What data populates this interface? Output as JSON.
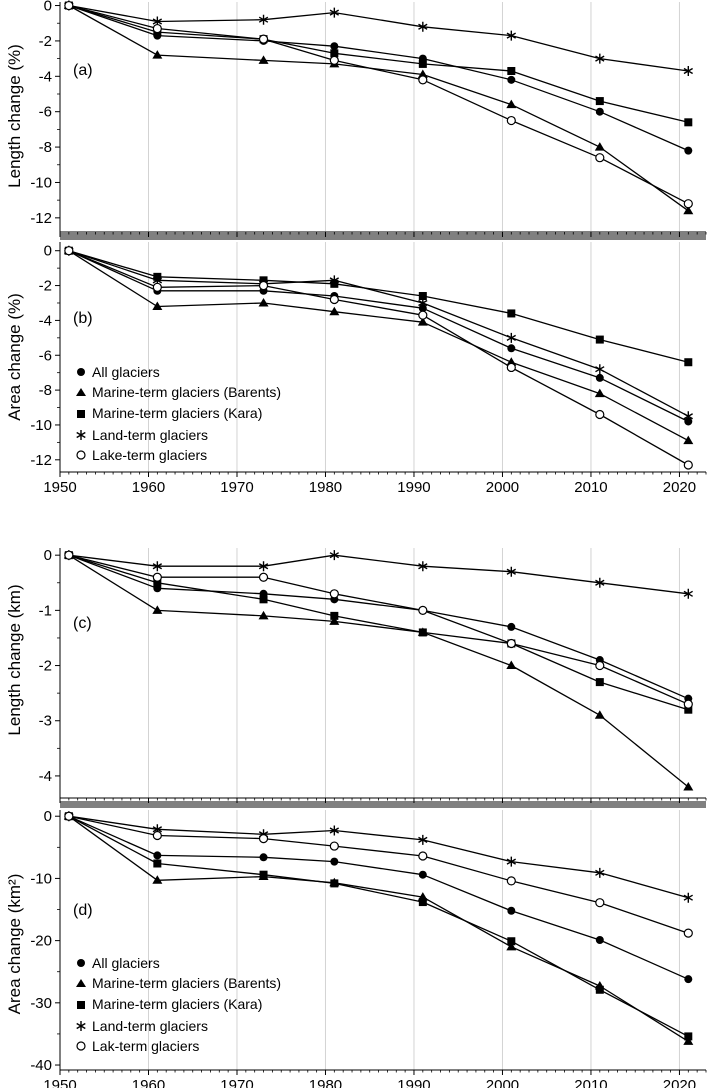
{
  "figure": {
    "x_tick_labels": [
      "1950",
      "1960",
      "1970",
      "1980",
      "1990",
      "2000",
      "2010",
      "2020"
    ]
  },
  "chart_data": [
    {
      "type": "line",
      "panel_label": "(a)",
      "ylabel": "Length change (%)",
      "xlim": [
        1950,
        2023
      ],
      "ylim": [
        -12.8,
        0.2
      ],
      "yticks": [
        0,
        -2,
        -4,
        -6,
        -8,
        -10,
        -12
      ],
      "x": [
        1951,
        1961,
        1973,
        1981,
        1991,
        2001,
        2011,
        2021
      ],
      "legend": false,
      "series": [
        {
          "name": "All glaciers",
          "marker": "circle-filled",
          "values": [
            0,
            -1.7,
            -2.0,
            -2.3,
            -3.0,
            -4.2,
            -6.0,
            -8.2
          ]
        },
        {
          "name": "Marine-term glaciers (Barents)",
          "marker": "triangle",
          "values": [
            0,
            -2.8,
            -3.1,
            -3.3,
            -3.9,
            -5.6,
            -8.0,
            -11.6
          ]
        },
        {
          "name": "Marine-term glaciers (Kara)",
          "marker": "square",
          "values": [
            0,
            -1.5,
            -1.9,
            -2.7,
            -3.3,
            -3.7,
            -5.4,
            -6.6
          ]
        },
        {
          "name": "Land-term glaciers",
          "marker": "asterisk",
          "values": [
            0,
            -0.9,
            -0.8,
            -0.4,
            -1.2,
            -1.7,
            -3.0,
            -3.7
          ]
        },
        {
          "name": "Lake-term glaciers",
          "marker": "circle-open",
          "values": [
            0,
            -1.3,
            -1.9,
            -3.1,
            -4.2,
            -6.5,
            -8.6,
            -11.2
          ]
        }
      ]
    },
    {
      "type": "line",
      "panel_label": "(b)",
      "ylabel": "Area change (%)",
      "xlim": [
        1950,
        2023
      ],
      "ylim": [
        -12.7,
        0.5
      ],
      "yticks": [
        0,
        -2,
        -4,
        -6,
        -8,
        -10,
        -12
      ],
      "x": [
        1951,
        1961,
        1973,
        1981,
        1991,
        2001,
        2011,
        2021
      ],
      "legend": true,
      "series": [
        {
          "name": "All glaciers",
          "marker": "circle-filled",
          "values": [
            0,
            -2.3,
            -2.3,
            -2.6,
            -3.3,
            -5.6,
            -7.3,
            -9.8
          ]
        },
        {
          "name": "Marine-term glaciers (Barents)",
          "marker": "triangle",
          "values": [
            0,
            -3.2,
            -3.0,
            -3.5,
            -4.1,
            -6.4,
            -8.2,
            -10.9
          ]
        },
        {
          "name": "Marine-term glaciers (Kara)",
          "marker": "square",
          "values": [
            0,
            -1.5,
            -1.7,
            -1.9,
            -2.6,
            -3.6,
            -5.1,
            -6.4
          ]
        },
        {
          "name": "Land-term glaciers",
          "marker": "asterisk",
          "values": [
            0,
            -1.7,
            -1.9,
            -1.7,
            -3.0,
            -5.0,
            -6.8,
            -9.5
          ]
        },
        {
          "name": "Lake-term glaciers",
          "marker": "circle-open",
          "values": [
            0,
            -2.1,
            -2.0,
            -2.8,
            -3.7,
            -6.7,
            -9.4,
            -12.3
          ]
        }
      ]
    },
    {
      "type": "line",
      "panel_label": "(c)",
      "ylabel": "Length change (km)",
      "xlim": [
        1950,
        2023
      ],
      "ylim": [
        -4.4,
        0.13
      ],
      "yticks": [
        0,
        -1,
        -2,
        -3,
        -4
      ],
      "x": [
        1951,
        1961,
        1973,
        1981,
        1991,
        2001,
        2011,
        2021
      ],
      "legend": false,
      "series": [
        {
          "name": "All glaciers",
          "marker": "circle-filled",
          "values": [
            0,
            -0.6,
            -0.7,
            -0.8,
            -1.0,
            -1.3,
            -1.9,
            -2.6
          ]
        },
        {
          "name": "Marine-term glaciers (Barents)",
          "marker": "triangle",
          "values": [
            0,
            -1.0,
            -1.1,
            -1.2,
            -1.4,
            -2.0,
            -2.9,
            -4.2
          ]
        },
        {
          "name": "Marine-term glaciers (Kara)",
          "marker": "square",
          "values": [
            0,
            -0.5,
            -0.8,
            -1.1,
            -1.4,
            -1.6,
            -2.3,
            -2.8
          ]
        },
        {
          "name": "Land-term glaciers",
          "marker": "asterisk",
          "values": [
            0,
            -0.2,
            -0.2,
            0.0,
            -0.2,
            -0.3,
            -0.5,
            -0.7
          ]
        },
        {
          "name": "Lake-term glaciers",
          "marker": "circle-open",
          "values": [
            0,
            -0.4,
            -0.4,
            -0.7,
            -1.0,
            -1.6,
            -2.0,
            -2.7
          ]
        }
      ]
    },
    {
      "type": "line",
      "panel_label": "(d)",
      "ylabel": "Area change (km²)",
      "xlim": [
        1950,
        2023
      ],
      "ylim": [
        -40.8,
        1.0
      ],
      "yticks": [
        0,
        -10,
        -20,
        -30,
        -40
      ],
      "x": [
        1951,
        1961,
        1973,
        1981,
        1991,
        2001,
        2011,
        2021
      ],
      "legend": true,
      "series": [
        {
          "name": "All glaciers",
          "marker": "circle-filled",
          "values": [
            0,
            -6.3,
            -6.6,
            -7.3,
            -9.4,
            -15.2,
            -19.9,
            -26.2
          ]
        },
        {
          "name": "Marine-term glaciers (Barents)",
          "marker": "triangle",
          "values": [
            0,
            -10.3,
            -9.7,
            -10.7,
            -13.0,
            -21.0,
            -27.3,
            -36.2
          ]
        },
        {
          "name": "Marine-term glaciers (Kara)",
          "marker": "square",
          "values": [
            0,
            -7.6,
            -9.4,
            -10.8,
            -13.8,
            -20.1,
            -27.9,
            -35.4
          ]
        },
        {
          "name": "Land-term glaciers",
          "marker": "asterisk",
          "values": [
            0,
            -2.1,
            -2.9,
            -2.3,
            -3.8,
            -7.3,
            -9.1,
            -13.1
          ]
        },
        {
          "name": "Lak-term glaciers",
          "marker": "circle-open",
          "values": [
            0,
            -3.1,
            -3.6,
            -4.8,
            -6.4,
            -10.4,
            -13.9,
            -18.8
          ]
        }
      ]
    }
  ]
}
